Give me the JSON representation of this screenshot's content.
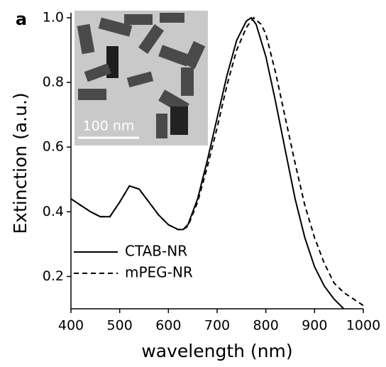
{
  "chart_data": {
    "type": "line",
    "panel_label": "a",
    "inset_scale_label": "100 nm",
    "x_label": "wavelength (nm)",
    "y_label": "Extinction (a.u.)",
    "xlim": [
      400,
      1000
    ],
    "ylim": [
      0.1,
      1.0
    ],
    "xticks": [
      400,
      500,
      600,
      700,
      800,
      900,
      1000
    ],
    "yticks": [
      0.2,
      0.4,
      0.6,
      0.8,
      {
        "value": 1,
        "label": "1.0"
      }
    ],
    "legend": "lower left",
    "series": [
      {
        "name": "CTAB-NR",
        "color": "#000000",
        "dashed": false,
        "x": [
          400,
          420,
          440,
          460,
          480,
          500,
          520,
          540,
          560,
          580,
          600,
          620,
          630,
          640,
          660,
          680,
          700,
          720,
          740,
          760,
          770,
          780,
          800,
          820,
          840,
          860,
          880,
          900,
          920,
          940,
          960
        ],
        "values": [
          0.44,
          0.42,
          0.4,
          0.385,
          0.385,
          0.43,
          0.48,
          0.47,
          0.43,
          0.39,
          0.36,
          0.345,
          0.345,
          0.36,
          0.44,
          0.56,
          0.69,
          0.82,
          0.93,
          0.99,
          1.0,
          0.98,
          0.88,
          0.74,
          0.59,
          0.44,
          0.32,
          0.23,
          0.17,
          0.13,
          0.1
        ]
      },
      {
        "name": "mPEG-NR",
        "color": "#000000",
        "dashed": true,
        "x": [
          400,
          420,
          440,
          460,
          480,
          500,
          520,
          540,
          560,
          580,
          600,
          620,
          630,
          640,
          660,
          680,
          700,
          720,
          740,
          760,
          775,
          790,
          800,
          820,
          840,
          860,
          880,
          900,
          920,
          940,
          960,
          980,
          1000
        ],
        "values": [
          0.44,
          0.42,
          0.4,
          0.385,
          0.385,
          0.43,
          0.48,
          0.47,
          0.43,
          0.39,
          0.36,
          0.345,
          0.345,
          0.355,
          0.43,
          0.54,
          0.66,
          0.79,
          0.9,
          0.97,
          1.0,
          0.98,
          0.95,
          0.83,
          0.69,
          0.55,
          0.42,
          0.32,
          0.24,
          0.18,
          0.15,
          0.13,
          0.11
        ]
      }
    ]
  }
}
